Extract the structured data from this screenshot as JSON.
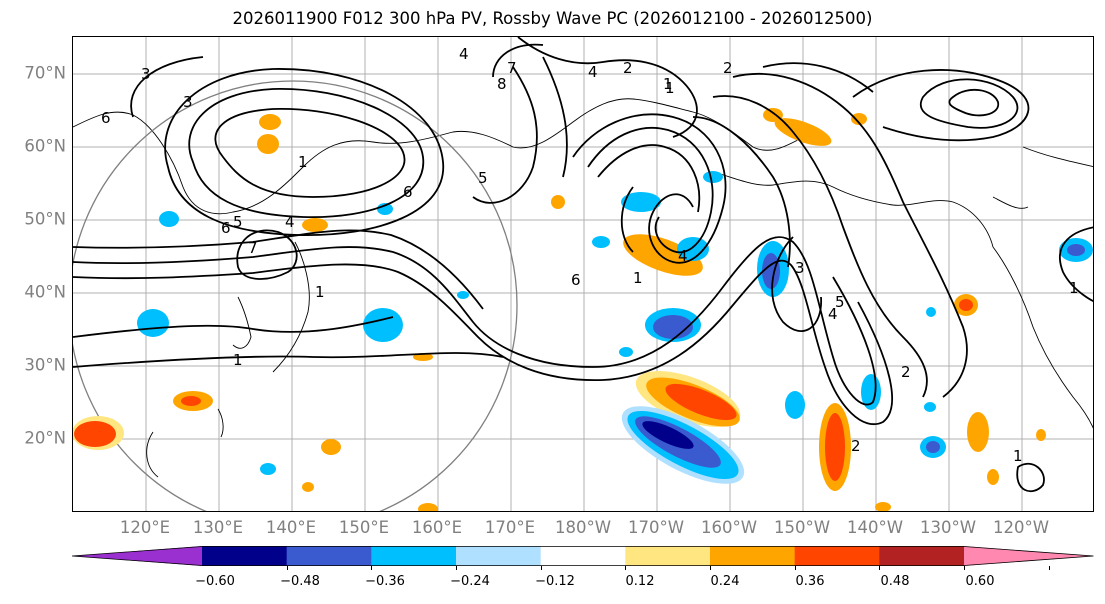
{
  "title": "2026011900 F012 300 hPa PV, Rossby Wave PC (2026012100 - 2026012500)",
  "lat_labels": [
    "70°N",
    "60°N",
    "50°N",
    "40°N",
    "30°N",
    "20°N"
  ],
  "lon_labels": [
    "120°E",
    "130°E",
    "140°E",
    "150°E",
    "160°E",
    "170°E",
    "180°W",
    "170°W",
    "160°W",
    "150°W",
    "140°W",
    "130°W",
    "120°W"
  ],
  "colorbar": {
    "colors": [
      "#9b30d0",
      "#00008b",
      "#3a5bd0",
      "#00bfff",
      "#b0e0ff",
      "#ffffff",
      "#ffe680",
      "#ffa500",
      "#ff4500",
      "#b22222",
      "#ff88b0"
    ],
    "tick_labels": [
      "−0.60",
      "−0.48",
      "−0.36",
      "−0.24",
      "−0.12",
      "0.12",
      "0.24",
      "0.36",
      "0.48",
      "0.60"
    ]
  },
  "contour_labels": [
    "3",
    "4",
    "7",
    "8",
    "4",
    "2",
    "1",
    "2",
    "6",
    "3",
    "1",
    "5",
    "6",
    "4",
    "5",
    "7",
    "1",
    "1",
    "6",
    "6",
    "1",
    "4",
    "5",
    "4",
    "3",
    "1",
    "2",
    "2",
    "1",
    "1"
  ],
  "chart_data": {
    "type": "heatmap",
    "title": "2026011900 F012 300 hPa PV, Rossby Wave PC (2026012100 - 2026012500)",
    "lat_range": [
      10,
      75
    ],
    "lon_range": [
      110,
      250
    ],
    "fill_field": "Rossby Wave PC",
    "fill_levels": [
      -0.6,
      -0.48,
      -0.36,
      -0.24,
      -0.12,
      0.12,
      0.24,
      0.36,
      0.48,
      0.6
    ],
    "contour_field": "300 hPa PV",
    "grid": true
  }
}
